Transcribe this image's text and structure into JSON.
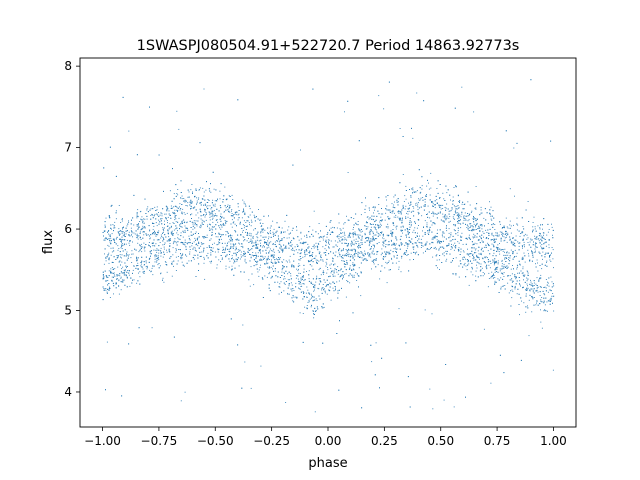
{
  "chart_data": {
    "type": "scatter",
    "title": "1SWASPJ080504.91+522720.7 Period 14863.92773s",
    "xlabel": "phase",
    "ylabel": "flux",
    "xlim": [
      -1.1,
      1.1
    ],
    "ylim": [
      3.57,
      8.1
    ],
    "xticks": [
      -1.0,
      -0.75,
      -0.5,
      -0.25,
      0.0,
      0.25,
      0.5,
      0.75,
      1.0
    ],
    "xtick_labels": [
      "−1.00",
      "−0.75",
      "−0.50",
      "−0.25",
      "0.00",
      "0.25",
      "0.50",
      "0.75",
      "1.00"
    ],
    "yticks": [
      4,
      5,
      6,
      7,
      8
    ],
    "ytick_labels": [
      "4",
      "5",
      "6",
      "7",
      "8"
    ],
    "grid": false,
    "marker_color": "#1f77b4",
    "x_range": [
      -1.0,
      1.0
    ],
    "series": [
      {
        "description_points": "dense folded light curve, two bands",
        "upper_band": {
          "phase": [
            -1.0,
            -0.75,
            -0.6,
            -0.45,
            -0.25,
            -0.1,
            0.0,
            0.15,
            0.4,
            0.55,
            0.75,
            0.9,
            1.0
          ],
          "flux": [
            5.85,
            6.1,
            6.3,
            6.2,
            5.85,
            5.72,
            5.75,
            5.95,
            6.35,
            6.2,
            5.9,
            5.8,
            5.8
          ]
        },
        "lower_band": {
          "phase": [
            -1.0,
            -0.75,
            -0.6,
            -0.45,
            -0.25,
            -0.1,
            0.0,
            0.15,
            0.4,
            0.55,
            0.75,
            0.9,
            1.0
          ],
          "flux": [
            5.35,
            5.75,
            5.85,
            5.8,
            5.55,
            5.25,
            5.3,
            5.7,
            5.9,
            5.8,
            5.55,
            5.25,
            5.25
          ]
        }
      }
    ]
  }
}
